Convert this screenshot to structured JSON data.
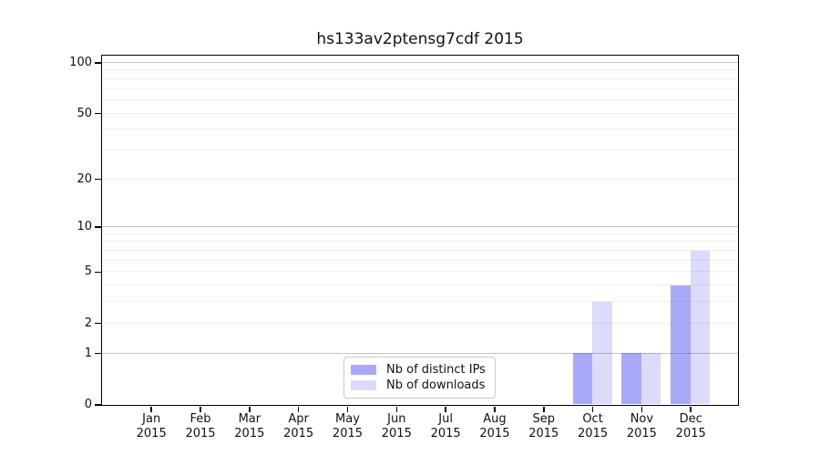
{
  "chart_data": {
    "type": "bar",
    "title": "hs133av2ptensg7cdf 2015",
    "categories": [
      "Jan 2015",
      "Feb 2015",
      "Mar 2015",
      "Apr 2015",
      "May 2015",
      "Jun 2015",
      "Jul 2015",
      "Aug 2015",
      "Sep 2015",
      "Oct 2015",
      "Nov 2015",
      "Dec 2015"
    ],
    "series": [
      {
        "name": "Nb of distinct IPs",
        "color": "#a9a9fa",
        "values": [
          0,
          0,
          0,
          0,
          0,
          0,
          0,
          0,
          0,
          1,
          1,
          4
        ]
      },
      {
        "name": "Nb of downloads",
        "color": "#dbdbfa",
        "values": [
          0,
          0,
          0,
          0,
          0,
          0,
          0,
          0,
          0,
          3,
          1,
          7
        ]
      }
    ],
    "xlabel": "",
    "ylabel": "",
    "y_axis": {
      "scale": "log1p",
      "tick_values": [
        100,
        50,
        20,
        10,
        5,
        2,
        1,
        0
      ],
      "ylim": [
        0,
        110
      ]
    },
    "grid": {
      "on": true,
      "major_values": [
        1,
        10,
        100
      ],
      "minor_values": [
        2,
        3,
        4,
        5,
        6,
        7,
        8,
        9,
        20,
        30,
        40,
        50,
        60,
        70,
        80,
        90
      ]
    },
    "legend_position": "lower center inside plot"
  },
  "colors": {
    "axis": "#000000",
    "major_grid": "#c4c4c4",
    "minor_grid": "#efefef",
    "legend_border": "#c9c9c9",
    "background": "#ffffff"
  }
}
